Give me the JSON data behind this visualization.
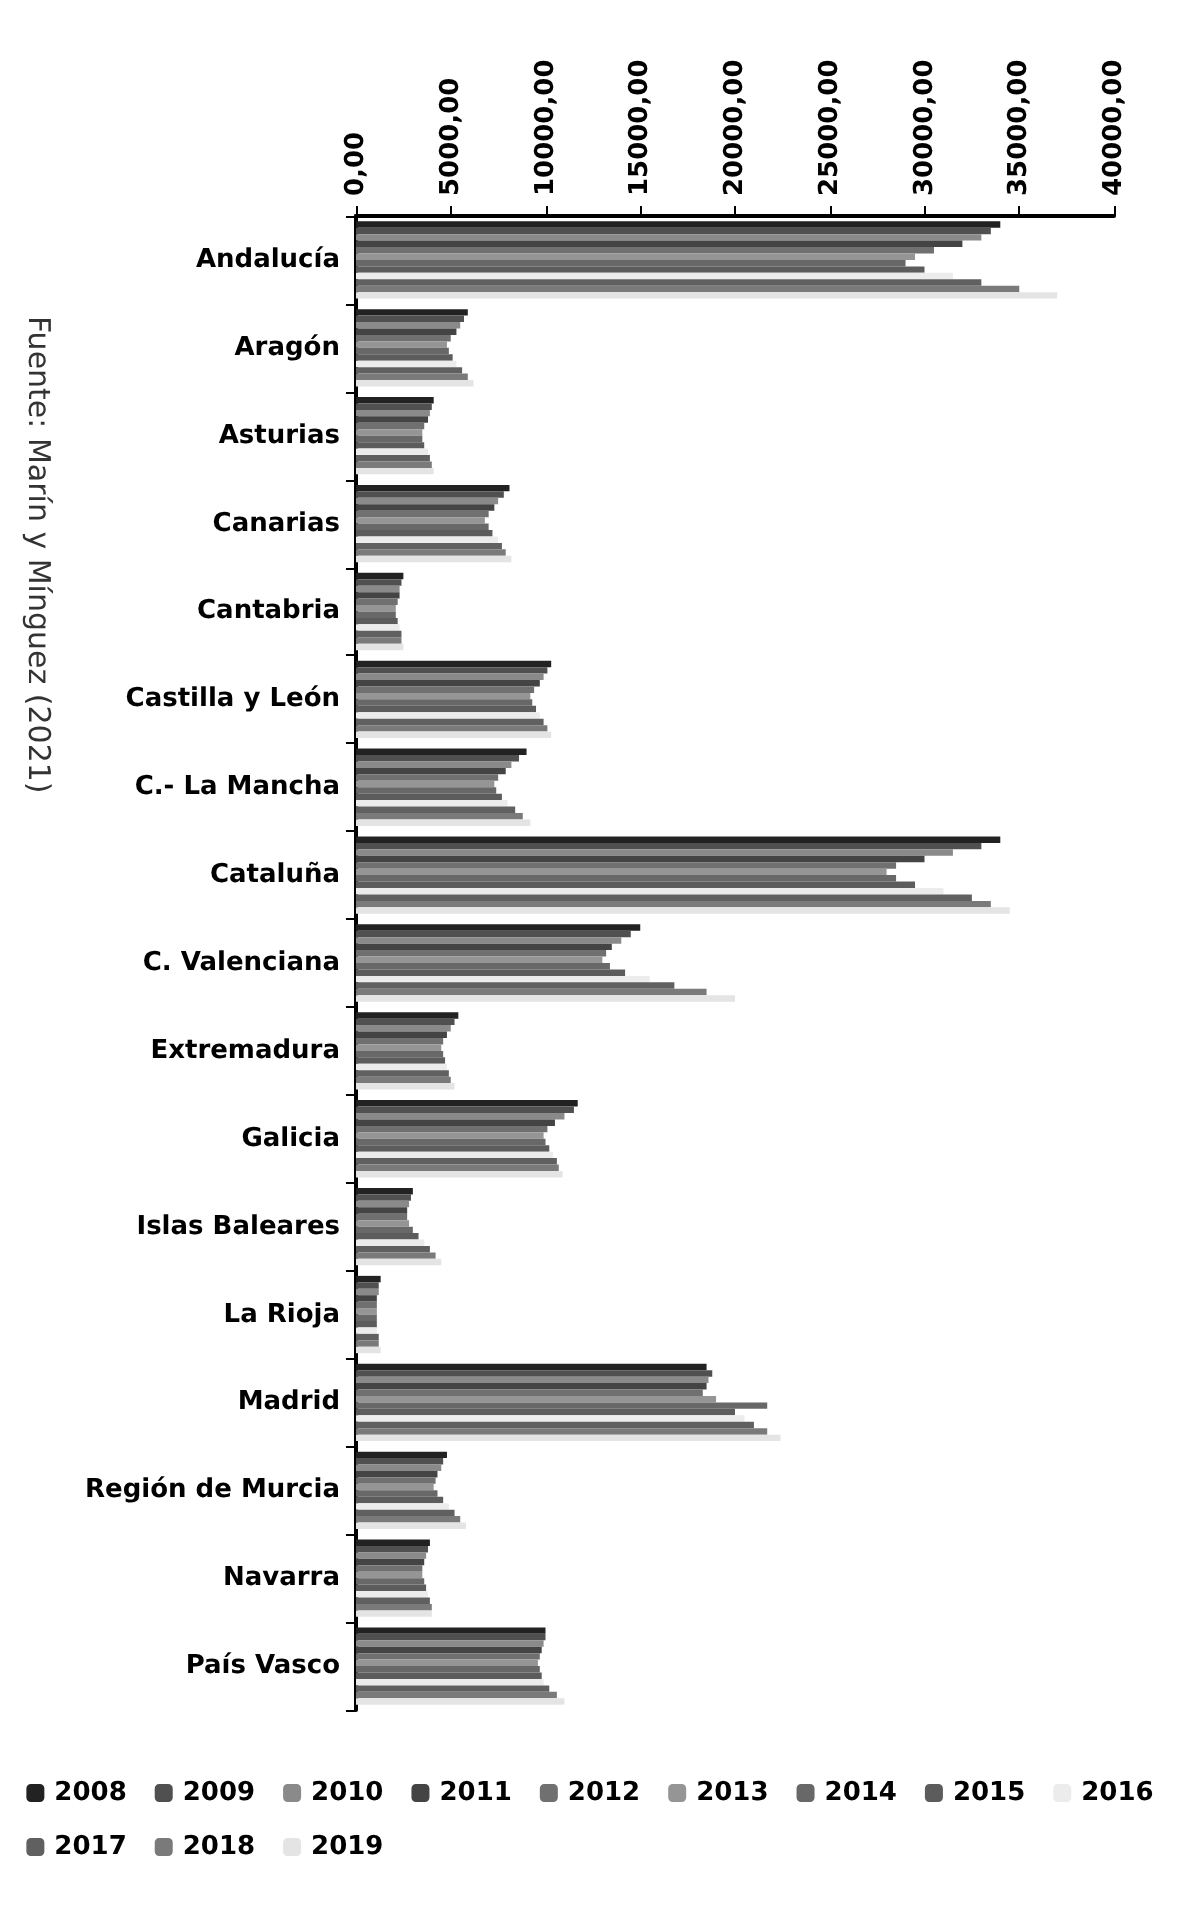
{
  "chart_data": {
    "type": "bar",
    "orientation": "horizontal",
    "annotations": [
      "Fuente: Marín y Mínguez (2021)"
    ],
    "categories": [
      "Andalucía",
      "Aragón",
      "Asturias",
      "Canarias",
      "Cantabria",
      "Castilla y León",
      "C.- La Mancha",
      "Cataluña",
      "C. Valenciana",
      "Extremadura",
      "Galicia",
      "Islas Baleares",
      "La Rioja",
      "Madrid",
      "Región de Murcia",
      "Navarra",
      "País Vasco"
    ],
    "xlim": [
      0,
      40000
    ],
    "xticks": [
      {
        "value": 0,
        "label": "0,00"
      },
      {
        "value": 5000,
        "label": "5000,00"
      },
      {
        "value": 10000,
        "label": "10000,00"
      },
      {
        "value": 15000,
        "label": "15000,00"
      },
      {
        "value": 20000,
        "label": "20000,00"
      },
      {
        "value": 25000,
        "label": "25000,00"
      },
      {
        "value": 30000,
        "label": "30000,00"
      },
      {
        "value": 35000,
        "label": "35000,00"
      },
      {
        "value": 40000,
        "label": "40000,00"
      }
    ],
    "grid": false,
    "legend": "bottom",
    "series": [
      {
        "name": "2008",
        "color": "#222222",
        "values": [
          34000,
          5900,
          4100,
          8100,
          2500,
          10300,
          9000,
          34000,
          15000,
          5400,
          11700,
          3000,
          1300,
          18500,
          4800,
          3900,
          10000
        ]
      },
      {
        "name": "2009",
        "color": "#505050",
        "values": [
          33500,
          5700,
          4000,
          7800,
          2400,
          10100,
          8600,
          33000,
          14500,
          5200,
          11500,
          2900,
          1200,
          18800,
          4600,
          3800,
          10000
        ]
      },
      {
        "name": "2010",
        "color": "#8a8a8a",
        "values": [
          33000,
          5500,
          3900,
          7500,
          2300,
          9900,
          8200,
          31500,
          14000,
          5000,
          11000,
          2800,
          1200,
          18600,
          4500,
          3700,
          9900
        ]
      },
      {
        "name": "2011",
        "color": "#444444",
        "values": [
          32000,
          5300,
          3800,
          7300,
          2300,
          9700,
          7900,
          30000,
          13500,
          4800,
          10500,
          2700,
          1100,
          18500,
          4300,
          3600,
          9800
        ]
      },
      {
        "name": "2012",
        "color": "#707070",
        "values": [
          30500,
          5000,
          3600,
          7000,
          2200,
          9400,
          7500,
          28500,
          13200,
          4600,
          10100,
          2700,
          1100,
          18300,
          4200,
          3500,
          9700
        ]
      },
      {
        "name": "2013",
        "color": "#959595",
        "values": [
          29500,
          4800,
          3500,
          6800,
          2100,
          9200,
          7300,
          28000,
          13000,
          4500,
          9900,
          2800,
          1100,
          19000,
          4100,
          3500,
          9600
        ]
      },
      {
        "name": "2014",
        "color": "#686868",
        "values": [
          29000,
          4900,
          3500,
          7000,
          2100,
          9300,
          7400,
          28500,
          13400,
          4600,
          10000,
          3000,
          1100,
          21700,
          4300,
          3600,
          9700
        ]
      },
      {
        "name": "2015",
        "color": "#5c5c5c",
        "values": [
          30000,
          5100,
          3600,
          7200,
          2200,
          9500,
          7700,
          29500,
          14200,
          4700,
          10200,
          3300,
          1100,
          20000,
          4600,
          3700,
          9800
        ]
      },
      {
        "name": "2016",
        "color": "#ececec",
        "values": [
          31500,
          5300,
          3800,
          7500,
          2300,
          9700,
          8000,
          31000,
          15500,
          4800,
          10400,
          3600,
          1100,
          20500,
          4900,
          3800,
          9900
        ]
      },
      {
        "name": "2017",
        "color": "#606060",
        "values": [
          33000,
          5600,
          3900,
          7700,
          2400,
          9900,
          8400,
          32500,
          16800,
          4900,
          10600,
          3900,
          1200,
          21000,
          5200,
          3900,
          10200
        ]
      },
      {
        "name": "2018",
        "color": "#7a7a7a",
        "values": [
          35000,
          5900,
          4000,
          7900,
          2400,
          10100,
          8800,
          33500,
          18500,
          5000,
          10700,
          4200,
          1200,
          21700,
          5500,
          4000,
          10600
        ]
      },
      {
        "name": "2019",
        "color": "#e4e4e4",
        "values": [
          37000,
          6200,
          4100,
          8200,
          2500,
          10300,
          9200,
          34500,
          20000,
          5200,
          10900,
          4500,
          1300,
          22400,
          5800,
          4000,
          11000
        ]
      }
    ]
  }
}
